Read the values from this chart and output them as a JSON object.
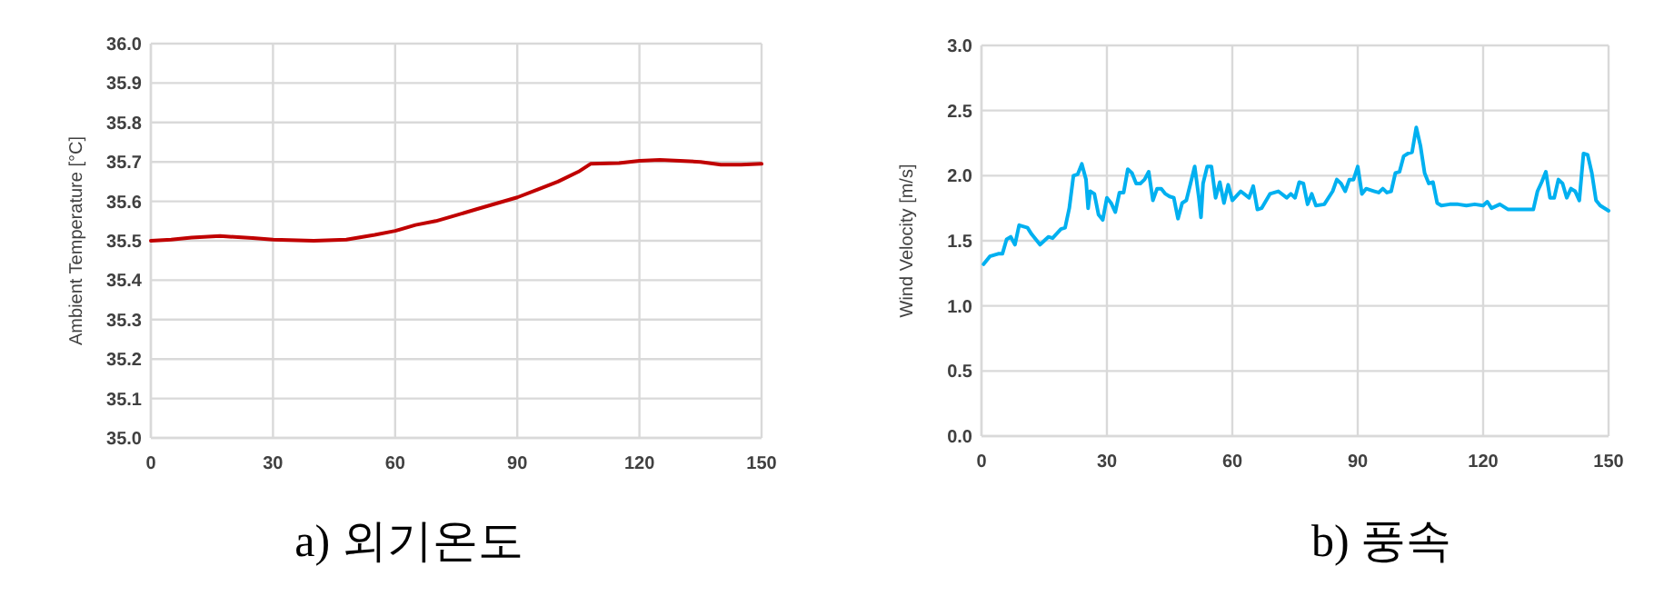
{
  "chart_data": [
    {
      "type": "line",
      "title": "a)  외기온도",
      "ylabel": "Ambient Temperature [°C]",
      "xlim": [
        0,
        150
      ],
      "xticks": [
        0,
        30,
        60,
        90,
        120,
        150
      ],
      "ylim": [
        35,
        36
      ],
      "yticks": [
        {
          "value": 35,
          "label": "35.0"
        },
        {
          "value": 35.1,
          "label": "35.1"
        },
        {
          "value": 35.2,
          "label": "35.2"
        },
        {
          "value": 35.3,
          "label": "35.3"
        },
        {
          "value": 35.4,
          "label": "35.4"
        },
        {
          "value": 35.5,
          "label": "35.5"
        },
        {
          "value": 35.6,
          "label": "35.6"
        },
        {
          "value": 35.7,
          "label": "35.7"
        },
        {
          "value": 35.8,
          "label": "35.8"
        },
        {
          "value": 35.9,
          "label": "35.9"
        },
        {
          "value": 36,
          "label": "36.0"
        }
      ],
      "grid": true,
      "marker": "none",
      "line_style": "solid",
      "series": [
        {
          "color": "#c00000",
          "x": [
            0,
            5,
            10,
            17,
            25,
            30,
            40,
            48,
            55,
            60,
            65,
            70,
            75,
            80,
            85,
            90,
            95,
            100,
            105,
            108,
            115,
            120,
            125,
            130,
            135,
            140,
            145,
            150
          ],
          "values": [
            35.5,
            35.503,
            35.508,
            35.512,
            35.507,
            35.503,
            35.5,
            35.503,
            35.515,
            35.525,
            35.54,
            35.55,
            35.565,
            35.58,
            35.595,
            35.61,
            35.63,
            35.65,
            35.675,
            35.695,
            35.697,
            35.703,
            35.705,
            35.703,
            35.7,
            35.693,
            35.693,
            35.695
          ]
        }
      ]
    },
    {
      "type": "line",
      "title": "b)  풍속",
      "ylabel": "Wind Velocity [m/s]",
      "xlim": [
        0,
        150
      ],
      "xticks": [
        0,
        30,
        60,
        90,
        120,
        150
      ],
      "ylim": [
        0,
        3
      ],
      "yticks": [
        {
          "value": 0,
          "label": "0.0"
        },
        {
          "value": 0.5,
          "label": "0.5"
        },
        {
          "value": 1,
          "label": "1.0"
        },
        {
          "value": 1.5,
          "label": "1.5"
        },
        {
          "value": 2,
          "label": "2.0"
        },
        {
          "value": 2.5,
          "label": "2.5"
        },
        {
          "value": 3,
          "label": "3.0"
        }
      ],
      "grid": true,
      "marker": "none",
      "line_style": "solid",
      "series": [
        {
          "color": "#00b0f0",
          "x": [
            0.5,
            2,
            4,
            5,
            6,
            7,
            8,
            9,
            11,
            12,
            14,
            16,
            17,
            19,
            20,
            21,
            22,
            23,
            24,
            25,
            25.5,
            26,
            27,
            28,
            29,
            30,
            31,
            32,
            33,
            34,
            35,
            36,
            37,
            38,
            39,
            40,
            41,
            42,
            43,
            44,
            45,
            46,
            47,
            48,
            49,
            50,
            51,
            52,
            52.5,
            53,
            54,
            55,
            56,
            57,
            58,
            59,
            60,
            62,
            64,
            65,
            66,
            67,
            69,
            71,
            73,
            74,
            75,
            76,
            77,
            78,
            79,
            80,
            82,
            84,
            85,
            86,
            87,
            88,
            89,
            90,
            91,
            92,
            94,
            95,
            96,
            97,
            98,
            99,
            100,
            101,
            102,
            103,
            104,
            105,
            106,
            107,
            108,
            109,
            110,
            112,
            114,
            116,
            118,
            120,
            121,
            122,
            124,
            126,
            132,
            133,
            134,
            135,
            136,
            137,
            138,
            139,
            140,
            141,
            142,
            143,
            144,
            145,
            146,
            147,
            148,
            150
          ],
          "values": [
            1.32,
            1.38,
            1.4,
            1.4,
            1.51,
            1.53,
            1.47,
            1.62,
            1.6,
            1.55,
            1.47,
            1.53,
            1.52,
            1.59,
            1.6,
            1.75,
            2.0,
            2.01,
            2.09,
            1.97,
            1.75,
            1.88,
            1.86,
            1.7,
            1.66,
            1.83,
            1.79,
            1.72,
            1.87,
            1.87,
            2.05,
            2.02,
            1.94,
            1.94,
            1.97,
            2.03,
            1.81,
            1.9,
            1.9,
            1.86,
            1.84,
            1.83,
            1.67,
            1.79,
            1.81,
            1.94,
            2.07,
            1.83,
            1.68,
            1.94,
            2.07,
            2.07,
            1.83,
            1.95,
            1.79,
            1.93,
            1.81,
            1.88,
            1.83,
            1.92,
            1.74,
            1.75,
            1.86,
            1.88,
            1.83,
            1.86,
            1.83,
            1.95,
            1.94,
            1.78,
            1.86,
            1.77,
            1.78,
            1.88,
            1.97,
            1.94,
            1.88,
            1.97,
            1.97,
            2.07,
            1.86,
            1.9,
            1.88,
            1.87,
            1.9,
            1.87,
            1.88,
            2.02,
            2.03,
            2.15,
            2.17,
            2.18,
            2.37,
            2.23,
            2.02,
            1.94,
            1.95,
            1.79,
            1.77,
            1.78,
            1.78,
            1.77,
            1.78,
            1.77,
            1.8,
            1.75,
            1.78,
            1.74,
            1.74,
            1.88,
            1.95,
            2.03,
            1.83,
            1.83,
            1.97,
            1.94,
            1.83,
            1.9,
            1.88,
            1.81,
            2.17,
            2.16,
            2.02,
            1.81,
            1.77,
            1.73
          ]
        }
      ]
    }
  ]
}
